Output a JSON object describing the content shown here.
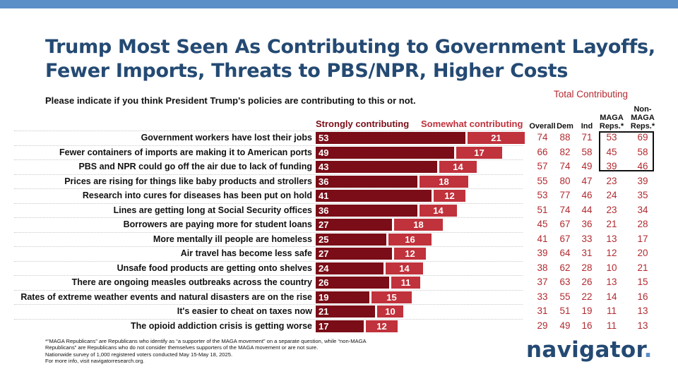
{
  "title_lines": [
    "Trump Most Seen As Contributing to Government Layoffs,",
    "Fewer Imports, Threats to PBS/NPR, Higher Costs"
  ],
  "subtitle": "Please indicate if you think President Trump's policies are contributing to this or not.",
  "legend": {
    "strong": "Strongly contributing",
    "some": "Somewhat contributing"
  },
  "total_header": "Total Contributing",
  "columns": [
    "Overall",
    "Dem",
    "Ind",
    "MAGA Reps.*",
    "Non-MAGA Reps.*"
  ],
  "column_lines": [
    [
      "Overall"
    ],
    [
      "Dem"
    ],
    [
      "Ind"
    ],
    [
      "MAGA",
      "Reps.*"
    ],
    [
      "Non-",
      "MAGA",
      "Reps.*"
    ]
  ],
  "colors": {
    "title": "#244a73",
    "strong": "#7a0d17",
    "somewhat": "#c0323c",
    "total_text": "#b22a30",
    "top_bar": "#5b8fc7"
  },
  "chart_data": {
    "type": "bar",
    "orientation": "horizontal",
    "stacked": true,
    "categories": [
      "Government workers have lost their jobs",
      "Fewer containers of imports are making it to American ports",
      "PBS and NPR could go off the air due to lack of funding",
      "Prices are rising for things like baby products and strollers",
      "Research into cures for diseases has been put on hold",
      "Lines are getting long at Social Security offices",
      "Borrowers are paying more for student loans",
      "More mentally ill people are homeless",
      "Air travel has become less safe",
      "Unsafe food products are getting onto shelves",
      "There are ongoing measles outbreaks across the country",
      "Rates of extreme weather events and natural disasters are on the rise",
      "It's easier to cheat on taxes now",
      "The opioid addiction crisis is getting worse"
    ],
    "series": [
      {
        "name": "Strongly contributing",
        "values": [
          53,
          49,
          43,
          36,
          41,
          36,
          27,
          25,
          27,
          24,
          26,
          19,
          21,
          17
        ]
      },
      {
        "name": "Somewhat contributing",
        "values": [
          21,
          17,
          14,
          18,
          12,
          14,
          18,
          16,
          12,
          14,
          11,
          15,
          10,
          12
        ]
      }
    ],
    "total_contributing": {
      "Overall": [
        74,
        66,
        57,
        55,
        53,
        51,
        45,
        41,
        39,
        38,
        37,
        33,
        31,
        29
      ],
      "Dem": [
        88,
        82,
        74,
        80,
        77,
        74,
        67,
        67,
        64,
        62,
        63,
        55,
        51,
        49
      ],
      "Ind": [
        71,
        58,
        49,
        47,
        46,
        44,
        36,
        33,
        31,
        28,
        26,
        22,
        19,
        16
      ],
      "MAGA Reps.*": [
        53,
        45,
        39,
        23,
        24,
        23,
        21,
        13,
        12,
        10,
        13,
        14,
        11,
        11
      ],
      "Non-MAGA Reps.*": [
        69,
        58,
        46,
        39,
        35,
        34,
        28,
        17,
        20,
        21,
        15,
        16,
        13,
        13
      ]
    }
  },
  "footnote_lines": [
    "*“MAGA Republicans” are Republicans who identify as “a supporter of the MAGA movement” on a separate question, while “non-MAGA",
    "Republicans” are Republicans who do not consider themselves supporters of the MAGA movement or are not sure.",
    "Nationwide survey of 1,000 registered voters conducted May 15-May 18, 2025.",
    "For more info, visit navigatorresearch.org."
  ],
  "logo": {
    "text": "navigator",
    "dot": "."
  }
}
